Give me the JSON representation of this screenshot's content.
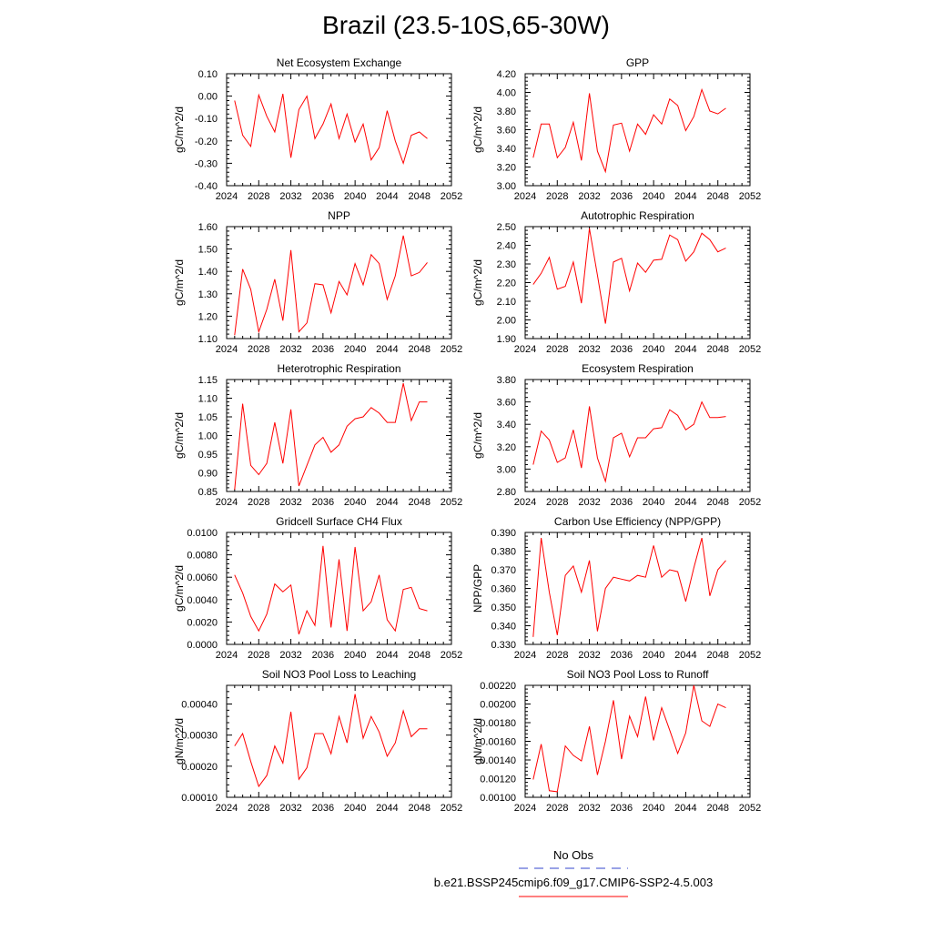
{
  "title": "Brazil (23.5-10S,65-30W)",
  "legend": {
    "items": [
      {
        "label": "No Obs",
        "color": "#3344cc",
        "style": "dashed"
      },
      {
        "label": "b.e21.BSSP245cmip6.f09_g17.CMIP6-SSP2-4.5.003",
        "color": "#ff0000",
        "style": "solid"
      }
    ]
  },
  "chart_data": [
    {
      "type": "line",
      "title": "Net Ecosystem Exchange",
      "ylabel": "gC/m^2/d",
      "xlim": [
        2024,
        2052
      ],
      "ylim": [
        -0.4,
        0.1
      ],
      "xticks": [
        2024,
        2028,
        2032,
        2036,
        2040,
        2044,
        2048,
        2052
      ],
      "yticks": [
        "0.10",
        "0.00",
        "-0.10",
        "-0.20",
        "-0.30",
        "-0.40"
      ],
      "series": [
        {
          "color": "#ff0000",
          "x": [
            2025,
            2026,
            2027,
            2028,
            2029,
            2030,
            2031,
            2032,
            2033,
            2034,
            2035,
            2036,
            2037,
            2038,
            2039,
            2040,
            2041,
            2042,
            2043,
            2044,
            2045,
            2046,
            2047,
            2048,
            2049
          ],
          "values": [
            -0.02,
            -0.175,
            -0.225,
            0.005,
            -0.09,
            -0.16,
            0.01,
            -0.275,
            -0.06,
            0.0,
            -0.19,
            -0.125,
            -0.035,
            -0.19,
            -0.08,
            -0.205,
            -0.125,
            -0.285,
            -0.23,
            -0.065,
            -0.2,
            -0.3,
            -0.175,
            -0.16,
            -0.19
          ]
        }
      ]
    },
    {
      "type": "line",
      "title": "GPP",
      "ylabel": "gC/m^2/d",
      "xlim": [
        2024,
        2052
      ],
      "ylim": [
        3.0,
        4.2
      ],
      "xticks": [
        2024,
        2028,
        2032,
        2036,
        2040,
        2044,
        2048,
        2052
      ],
      "yticks": [
        "4.20",
        "4.00",
        "3.80",
        "3.60",
        "3.40",
        "3.20",
        "3.00"
      ],
      "series": [
        {
          "color": "#ff0000",
          "x": [
            2025,
            2026,
            2027,
            2028,
            2029,
            2030,
            2031,
            2032,
            2033,
            2034,
            2035,
            2036,
            2037,
            2038,
            2039,
            2040,
            2041,
            2042,
            2043,
            2044,
            2045,
            2046,
            2047,
            2048,
            2049
          ],
          "values": [
            3.3,
            3.66,
            3.66,
            3.3,
            3.41,
            3.68,
            3.27,
            3.99,
            3.37,
            3.15,
            3.65,
            3.67,
            3.37,
            3.66,
            3.55,
            3.76,
            3.66,
            3.93,
            3.86,
            3.59,
            3.74,
            4.03,
            3.8,
            3.77,
            3.83
          ]
        }
      ]
    },
    {
      "type": "line",
      "title": "NPP",
      "ylabel": "gC/m^2/d",
      "xlim": [
        2024,
        2052
      ],
      "ylim": [
        1.1,
        1.6
      ],
      "xticks": [
        2024,
        2028,
        2032,
        2036,
        2040,
        2044,
        2048,
        2052
      ],
      "yticks": [
        "1.60",
        "1.50",
        "1.40",
        "1.30",
        "1.20",
        "1.10"
      ],
      "series": [
        {
          "color": "#ff0000",
          "x": [
            2025,
            2026,
            2027,
            2028,
            2029,
            2030,
            2031,
            2032,
            2033,
            2034,
            2035,
            2036,
            2037,
            2038,
            2039,
            2040,
            2041,
            2042,
            2043,
            2044,
            2045,
            2046,
            2047,
            2048,
            2049
          ],
          "values": [
            1.115,
            1.41,
            1.32,
            1.13,
            1.23,
            1.365,
            1.18,
            1.495,
            1.13,
            1.17,
            1.345,
            1.34,
            1.215,
            1.355,
            1.295,
            1.435,
            1.34,
            1.475,
            1.435,
            1.275,
            1.38,
            1.56,
            1.38,
            1.395,
            1.44
          ]
        }
      ]
    },
    {
      "type": "line",
      "title": "Autotrophic Respiration",
      "ylabel": "gC/m^2/d",
      "xlim": [
        2024,
        2052
      ],
      "ylim": [
        1.9,
        2.5
      ],
      "xticks": [
        2024,
        2028,
        2032,
        2036,
        2040,
        2044,
        2048,
        2052
      ],
      "yticks": [
        "2.50",
        "2.40",
        "2.30",
        "2.20",
        "2.10",
        "2.00",
        "1.90"
      ],
      "series": [
        {
          "color": "#ff0000",
          "x": [
            2025,
            2026,
            2027,
            2028,
            2029,
            2030,
            2031,
            2032,
            2033,
            2034,
            2035,
            2036,
            2037,
            2038,
            2039,
            2040,
            2041,
            2042,
            2043,
            2044,
            2045,
            2046,
            2047,
            2048,
            2049
          ],
          "values": [
            2.19,
            2.25,
            2.335,
            2.165,
            2.18,
            2.31,
            2.09,
            2.49,
            2.24,
            1.98,
            2.31,
            2.33,
            2.155,
            2.305,
            2.255,
            2.32,
            2.325,
            2.455,
            2.43,
            2.315,
            2.365,
            2.465,
            2.43,
            2.365,
            2.385
          ]
        }
      ]
    },
    {
      "type": "line",
      "title": "Heterotrophic Respiration",
      "ylabel": "gC/m^2/d",
      "xlim": [
        2024,
        2052
      ],
      "ylim": [
        0.85,
        1.15
      ],
      "xticks": [
        2024,
        2028,
        2032,
        2036,
        2040,
        2044,
        2048,
        2052
      ],
      "yticks": [
        "1.15",
        "1.10",
        "1.05",
        "1.00",
        "0.95",
        "0.90",
        "0.85"
      ],
      "series": [
        {
          "color": "#ff0000",
          "x": [
            2025,
            2026,
            2027,
            2028,
            2029,
            2030,
            2031,
            2032,
            2033,
            2034,
            2035,
            2036,
            2037,
            2038,
            2039,
            2040,
            2041,
            2042,
            2043,
            2044,
            2045,
            2046,
            2047,
            2048,
            2049
          ],
          "values": [
            0.855,
            1.085,
            0.92,
            0.895,
            0.925,
            1.035,
            0.925,
            1.07,
            0.865,
            0.92,
            0.975,
            0.995,
            0.955,
            0.975,
            1.025,
            1.045,
            1.05,
            1.075,
            1.06,
            1.035,
            1.035,
            1.14,
            1.04,
            1.09,
            1.09
          ]
        }
      ]
    },
    {
      "type": "line",
      "title": "Ecosystem Respiration",
      "ylabel": "gC/m^2/d",
      "xlim": [
        2024,
        2052
      ],
      "ylim": [
        2.8,
        3.8
      ],
      "xticks": [
        2024,
        2028,
        2032,
        2036,
        2040,
        2044,
        2048,
        2052
      ],
      "yticks": [
        "3.80",
        "3.60",
        "3.40",
        "3.20",
        "3.00",
        "2.80"
      ],
      "series": [
        {
          "color": "#ff0000",
          "x": [
            2025,
            2026,
            2027,
            2028,
            2029,
            2030,
            2031,
            2032,
            2033,
            2034,
            2035,
            2036,
            2037,
            2038,
            2039,
            2040,
            2041,
            2042,
            2043,
            2044,
            2045,
            2046,
            2047,
            2048,
            2049
          ],
          "values": [
            3.04,
            3.34,
            3.26,
            3.06,
            3.1,
            3.35,
            3.01,
            3.56,
            3.1,
            2.89,
            3.28,
            3.32,
            3.11,
            3.28,
            3.28,
            3.36,
            3.37,
            3.53,
            3.48,
            3.35,
            3.4,
            3.6,
            3.46,
            3.46,
            3.47
          ]
        }
      ]
    },
    {
      "type": "line",
      "title": "Gridcell Surface CH4 Flux",
      "ylabel": "gC/m^2/d",
      "xlim": [
        2024,
        2052
      ],
      "ylim": [
        0.0,
        0.01
      ],
      "xticks": [
        2024,
        2028,
        2032,
        2036,
        2040,
        2044,
        2048,
        2052
      ],
      "yticks": [
        "0.0100",
        "0.0080",
        "0.0060",
        "0.0040",
        "0.0020",
        "0.0000"
      ],
      "series": [
        {
          "color": "#ff0000",
          "x": [
            2025,
            2026,
            2027,
            2028,
            2029,
            2030,
            2031,
            2032,
            2033,
            2034,
            2035,
            2036,
            2037,
            2038,
            2039,
            2040,
            2041,
            2042,
            2043,
            2044,
            2045,
            2046,
            2047,
            2048,
            2049
          ],
          "values": [
            0.0062,
            0.0046,
            0.0025,
            0.0012,
            0.0027,
            0.0054,
            0.0047,
            0.0053,
            0.0009,
            0.003,
            0.0017,
            0.0088,
            0.0015,
            0.0076,
            0.0012,
            0.0087,
            0.003,
            0.0038,
            0.0062,
            0.0022,
            0.0012,
            0.0049,
            0.0051,
            0.0032,
            0.003
          ]
        }
      ]
    },
    {
      "type": "line",
      "title": "Carbon Use Efficiency (NPP/GPP)",
      "ylabel": "NPP/GPP",
      "xlim": [
        2024,
        2052
      ],
      "ylim": [
        0.33,
        0.39
      ],
      "xticks": [
        2024,
        2028,
        2032,
        2036,
        2040,
        2044,
        2048,
        2052
      ],
      "yticks": [
        "0.390",
        "0.380",
        "0.370",
        "0.360",
        "0.350",
        "0.340",
        "0.330"
      ],
      "series": [
        {
          "color": "#ff0000",
          "x": [
            2025,
            2026,
            2027,
            2028,
            2029,
            2030,
            2031,
            2032,
            2033,
            2034,
            2035,
            2036,
            2037,
            2038,
            2039,
            2040,
            2041,
            2042,
            2043,
            2044,
            2045,
            2046,
            2047,
            2048,
            2049
          ],
          "values": [
            0.334,
            0.387,
            0.358,
            0.335,
            0.367,
            0.372,
            0.358,
            0.375,
            0.337,
            0.36,
            0.366,
            0.365,
            0.364,
            0.367,
            0.366,
            0.383,
            0.366,
            0.37,
            0.369,
            0.353,
            0.371,
            0.387,
            0.356,
            0.37,
            0.375
          ]
        }
      ]
    },
    {
      "type": "line",
      "title": "Soil NO3 Pool Loss to Leaching",
      "ylabel": "gN/m^2/d",
      "xlim": [
        2024,
        2052
      ],
      "ylim": [
        0.0001,
        0.00046
      ],
      "xticks": [
        2024,
        2028,
        2032,
        2036,
        2040,
        2044,
        2048,
        2052
      ],
      "yticks": [
        "0.00040",
        "0.00030",
        "0.00020",
        "0.00010"
      ],
      "series": [
        {
          "color": "#ff0000",
          "x": [
            2025,
            2026,
            2027,
            2028,
            2029,
            2030,
            2031,
            2032,
            2033,
            2034,
            2035,
            2036,
            2037,
            2038,
            2039,
            2040,
            2041,
            2042,
            2043,
            2044,
            2045,
            2046,
            2047,
            2048,
            2049
          ],
          "values": [
            0.000265,
            0.000305,
            0.000215,
            0.000135,
            0.00017,
            0.000265,
            0.00021,
            0.000375,
            0.000158,
            0.000195,
            0.000305,
            0.000305,
            0.00024,
            0.00036,
            0.000275,
            0.000432,
            0.00029,
            0.00036,
            0.00031,
            0.000232,
            0.000275,
            0.000378,
            0.000295,
            0.00032,
            0.00032
          ]
        }
      ]
    },
    {
      "type": "line",
      "title": "Soil NO3 Pool Loss to Runoff",
      "ylabel": "gN/m^2/d",
      "xlim": [
        2024,
        2052
      ],
      "ylim": [
        0.001,
        0.0022
      ],
      "xticks": [
        2024,
        2028,
        2032,
        2036,
        2040,
        2044,
        2048,
        2052
      ],
      "yticks": [
        "0.00220",
        "0.00200",
        "0.00180",
        "0.00160",
        "0.00140",
        "0.00120",
        "0.00100"
      ],
      "series": [
        {
          "color": "#ff0000",
          "x": [
            2025,
            2026,
            2027,
            2028,
            2029,
            2030,
            2031,
            2032,
            2033,
            2034,
            2035,
            2036,
            2037,
            2038,
            2039,
            2040,
            2041,
            2042,
            2043,
            2044,
            2045,
            2046,
            2047,
            2048,
            2049
          ],
          "values": [
            0.00119,
            0.00157,
            0.00107,
            0.00106,
            0.00155,
            0.00145,
            0.00139,
            0.00176,
            0.00124,
            0.0016,
            0.00204,
            0.00141,
            0.00187,
            0.00165,
            0.00208,
            0.00161,
            0.00196,
            0.00172,
            0.00147,
            0.00169,
            0.0022,
            0.00182,
            0.00176,
            0.002,
            0.00196
          ]
        }
      ]
    }
  ]
}
